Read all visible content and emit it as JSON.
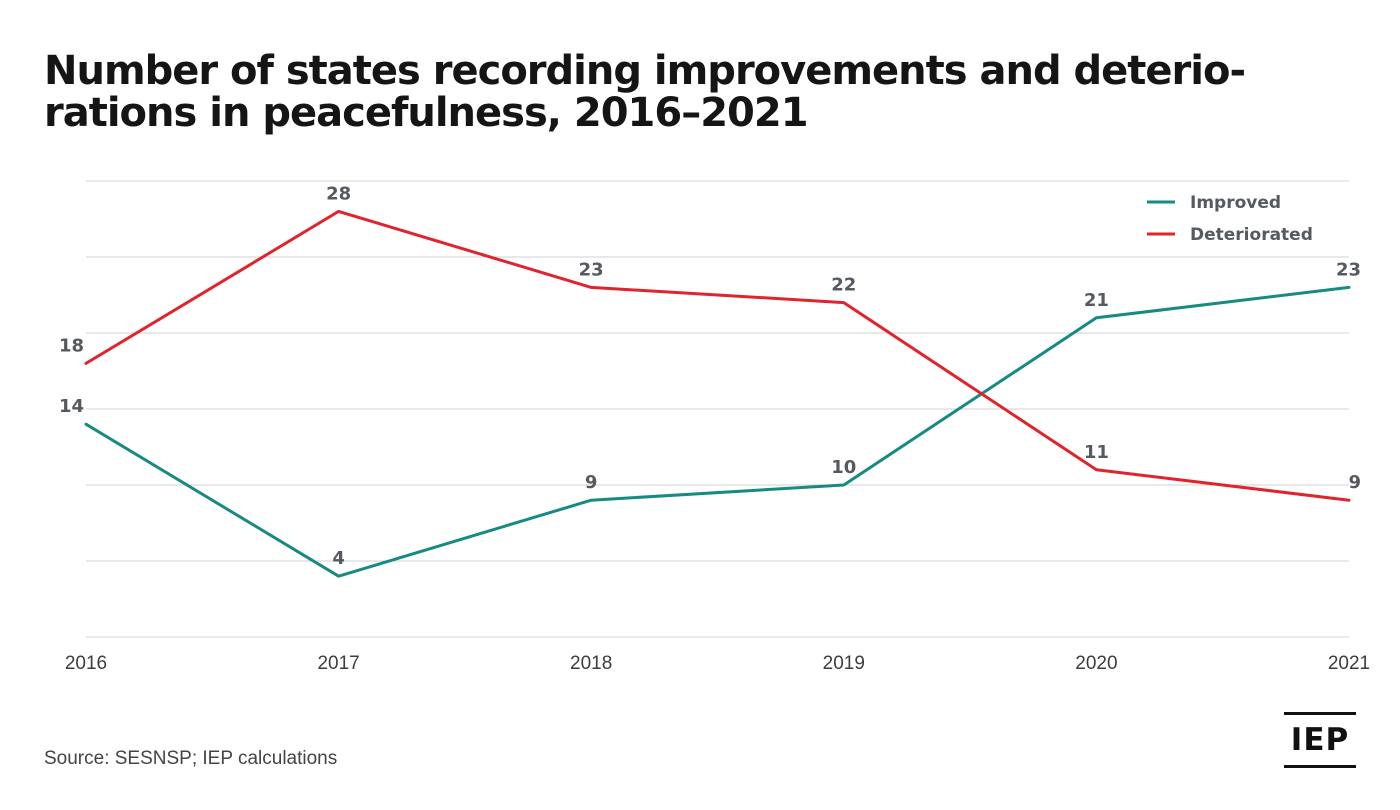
{
  "title_lines": [
    "Number of states recording improvements and deterio-",
    "rations in peacefulness, 2016–2021"
  ],
  "source": "Source: SESNSP; IEP calculations",
  "logo": "IEP",
  "colors": {
    "improved": "#178a82",
    "deteriorated": "#e0242d",
    "grid": "#d0d0d0"
  },
  "chart_data": {
    "type": "line",
    "title": "Number of states recording improvements and deteriorations in peacefulness, 2016–2021",
    "xlabel": "",
    "ylabel": "",
    "categories": [
      "2016",
      "2017",
      "2018",
      "2019",
      "2020",
      "2021"
    ],
    "ylim": [
      0,
      30
    ],
    "grid": true,
    "legend_position": "top-right",
    "series": [
      {
        "name": "Improved",
        "values": [
          14,
          4,
          9,
          10,
          21,
          23
        ],
        "color": "#178a82"
      },
      {
        "name": "Deteriorated",
        "values": [
          18,
          28,
          23,
          22,
          11,
          9
        ],
        "color": "#e0242d"
      }
    ]
  }
}
